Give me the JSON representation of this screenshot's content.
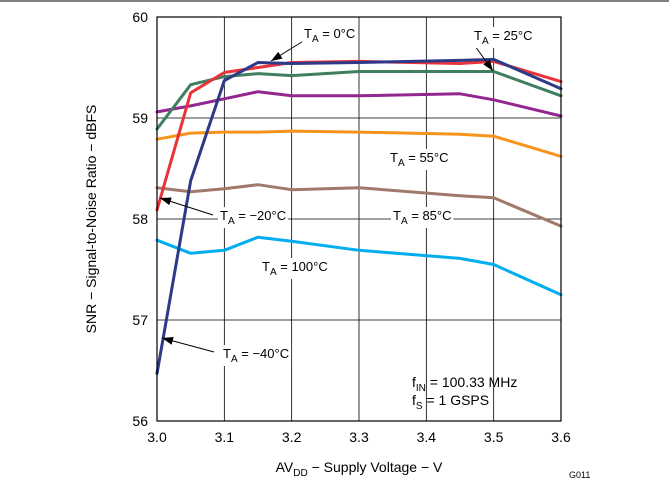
{
  "chart_data": {
    "type": "line",
    "xlabel": {
      "main": "AV",
      "sub": "DD",
      "rest": " − Supply Voltage − V"
    },
    "ylabel": "SNR − Signal-to-Noise Ratio − dBFS",
    "xlim": [
      3.0,
      3.6
    ],
    "ylim": [
      56,
      60
    ],
    "xticks": [
      "3.0",
      "3.1",
      "3.2",
      "3.3",
      "3.4",
      "3.5",
      "3.6"
    ],
    "yticks": [
      "56",
      "57",
      "58",
      "59",
      "60"
    ],
    "grid": true,
    "code": "G011",
    "conditions": [
      {
        "main": "f",
        "sub": "IN",
        "rest": " = 100.33 MHz"
      },
      {
        "main": "f",
        "sub": "S",
        "rest": " = 1 GSPS"
      }
    ],
    "series": [
      {
        "name": "T_A = 100°C",
        "color": "#00aeef",
        "x": [
          3.0,
          3.05,
          3.1,
          3.15,
          3.2,
          3.3,
          3.45,
          3.5,
          3.6
        ],
        "y": [
          57.79,
          57.66,
          57.69,
          57.82,
          57.78,
          57.69,
          57.61,
          57.55,
          57.25
        ]
      },
      {
        "name": "T_A = 85°C",
        "color": "#a0796b",
        "x": [
          3.0,
          3.05,
          3.1,
          3.15,
          3.2,
          3.3,
          3.45,
          3.5,
          3.6
        ],
        "y": [
          58.31,
          58.27,
          58.3,
          58.34,
          58.29,
          58.31,
          58.23,
          58.21,
          57.93
        ]
      },
      {
        "name": "T_A = 55°C",
        "color": "#f7941d",
        "x": [
          3.0,
          3.05,
          3.1,
          3.15,
          3.2,
          3.3,
          3.45,
          3.5,
          3.6
        ],
        "y": [
          58.79,
          58.85,
          58.86,
          58.86,
          58.87,
          58.86,
          58.84,
          58.82,
          58.62
        ]
      },
      {
        "name": "T_A = 0°C",
        "color": "#93278f",
        "x": [
          3.0,
          3.05,
          3.1,
          3.15,
          3.2,
          3.3,
          3.45,
          3.5,
          3.6
        ],
        "y": [
          59.06,
          59.12,
          59.19,
          59.26,
          59.22,
          59.22,
          59.24,
          59.18,
          59.02
        ]
      },
      {
        "name": "T_A = 25°C",
        "color": "#3f7f5f",
        "x": [
          3.0,
          3.05,
          3.1,
          3.15,
          3.2,
          3.3,
          3.45,
          3.5,
          3.6
        ],
        "y": [
          58.89,
          59.33,
          59.41,
          59.44,
          59.42,
          59.46,
          59.46,
          59.46,
          59.22
        ]
      },
      {
        "name": "T_A = −20°C",
        "color": "#e8333a",
        "x": [
          3.0,
          3.05,
          3.1,
          3.15,
          3.2,
          3.3,
          3.45,
          3.5,
          3.6
        ],
        "y": [
          58.09,
          59.25,
          59.45,
          59.5,
          59.55,
          59.56,
          59.54,
          59.56,
          59.36
        ]
      },
      {
        "name": "T_A = −40°C",
        "color": "#2e3a87",
        "x": [
          3.0,
          3.05,
          3.1,
          3.15,
          3.2,
          3.3,
          3.45,
          3.5,
          3.6
        ],
        "y": [
          56.47,
          58.38,
          59.37,
          59.55,
          59.54,
          59.55,
          59.57,
          59.58,
          59.29
        ]
      }
    ],
    "annotations": [
      {
        "key": "t0",
        "main": "T",
        "sub": "A",
        "rest": " = 0°C"
      },
      {
        "key": "t25",
        "main": "T",
        "sub": "A",
        "rest": " = 25°C"
      },
      {
        "key": "t55",
        "main": "T",
        "sub": "A",
        "rest": " = 55°C"
      },
      {
        "key": "tm20",
        "main": "T",
        "sub": "A",
        "rest": " = −20°C"
      },
      {
        "key": "t85",
        "main": "T",
        "sub": "A",
        "rest": " = 85°C"
      },
      {
        "key": "t100",
        "main": "T",
        "sub": "A",
        "rest": " = 100°C"
      },
      {
        "key": "tm40",
        "main": "T",
        "sub": "A",
        "rest": " = −40°C"
      }
    ]
  }
}
